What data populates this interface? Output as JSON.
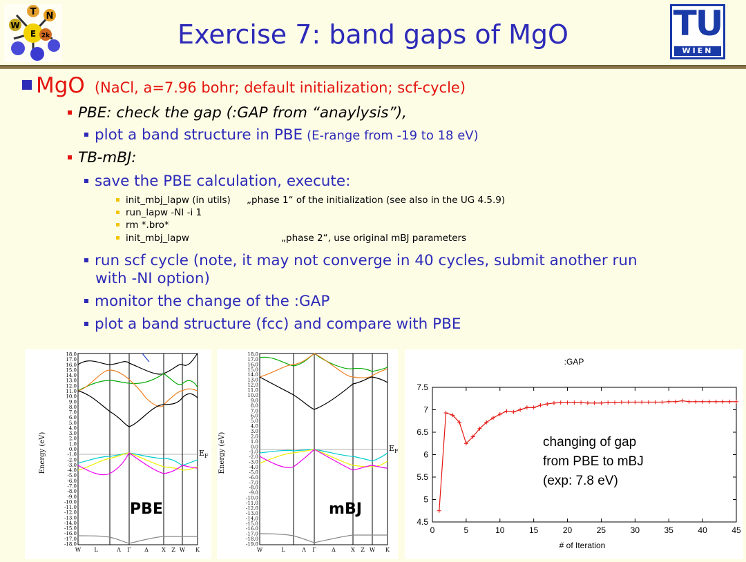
{
  "header": {
    "title": "Exercise 7: band gaps of MgO",
    "left_logo": {
      "letters": [
        "T",
        "E",
        "W",
        "N",
        "2k"
      ]
    },
    "right_logo": {
      "big": "TU",
      "small": "WIEN"
    }
  },
  "bullets": {
    "mgo": {
      "head": "MgO",
      "detail": "(NaCl, a=7.96 bohr; default initialization; scf-cycle)"
    },
    "pbe": {
      "text": "PBE: check the gap  (:GAP from “anaylysis”),"
    },
    "pbe_plot": {
      "text": "plot a band structure in PBE",
      "detail": "(E-range from -19 to 18 eV)"
    },
    "tbmbj": {
      "text": "TB-mBJ:"
    },
    "save": {
      "text": "save the PBE calculation, execute:"
    },
    "commands": [
      {
        "cmd": "init_mbj_lapw (in utils)",
        "note": "„phase 1“ of the initialization (see also in the UG 4.5.9)"
      },
      {
        "cmd": "run_lapw -NI -i 1",
        "note": ""
      },
      {
        "cmd": "rm *.bro*",
        "note": ""
      },
      {
        "cmd": "init_mbj_lapw",
        "note": "„phase 2“, use original mBJ parameters"
      }
    ],
    "scf_line1": "run scf cycle (note, it may not converge in 40 cycles, submit another run",
    "scf_line2": "with -NI option)",
    "monitor": "monitor the change of the :GAP",
    "plot_fcc": "plot a band structure (fcc)  and compare with PBE"
  },
  "band_plots": {
    "ylabel": "Energy (eV)",
    "fermi_label": "E",
    "fermi_sub": "F",
    "kpoints": [
      "W",
      "L",
      "Λ",
      "Γ",
      "Δ",
      "X",
      "Z",
      "W",
      "K"
    ],
    "pbe": {
      "name": "PBE",
      "yticks": [
        "18.0",
        "17.0",
        "16.0",
        "15.0",
        "14.0",
        "13.0",
        "12.0",
        "11.0",
        "10.0",
        "9.0",
        "8.0",
        "7.0",
        "6.0",
        "5.0",
        "4.0",
        "3.0",
        "2.0",
        "1.0",
        "0.0",
        "-1.0",
        "-2.0",
        "-3.0",
        "-4.0",
        "-5.0",
        "-6.0",
        "-7.0",
        "-8.0",
        "-9.0",
        "-10.0",
        "-11.0",
        "-12.0",
        "-13.0",
        "-14.0",
        "-15.0",
        "-16.0",
        "-17.0",
        "-18.0"
      ]
    },
    "mbj": {
      "name": "mBJ",
      "yticks": [
        "18.0",
        "17.0",
        "16.0",
        "15.0",
        "14.0",
        "13.0",
        "12.0",
        "11.0",
        "10.0",
        "9.0",
        "8.0",
        "7.0",
        "6.0",
        "5.0",
        "4.0",
        "3.0",
        "2.0",
        "1.0",
        "0.0",
        "-1.0",
        "-2.0",
        "-3.0",
        "-4.0",
        "-5.0",
        "-6.0",
        "-7.0",
        "-8.0",
        "-9.0",
        "-10.0",
        "-11.0",
        "-12.0",
        "-13.0",
        "-14.0",
        "-15.0",
        "-16.0",
        "-17.0",
        "-18.0",
        "-19.0"
      ]
    }
  },
  "chart_data": {
    "type": "line",
    "title": ":GAP",
    "xlabel": "# of Iteration",
    "ylabel": "",
    "xlim": [
      0,
      45
    ],
    "ylim": [
      4.5,
      7.5
    ],
    "xticks": [
      0,
      5,
      10,
      15,
      20,
      25,
      30,
      35,
      40,
      45
    ],
    "yticks": [
      4.5,
      5,
      5.5,
      6,
      6.5,
      7,
      7.5
    ],
    "series": [
      {
        "x": [
          1,
          2,
          3,
          4,
          5,
          6,
          7,
          8,
          9,
          10,
          11,
          12,
          13,
          14,
          15,
          16,
          17,
          18,
          19,
          20,
          21,
          22,
          23,
          24,
          25,
          26,
          27,
          28,
          29,
          30,
          31,
          32,
          33,
          34,
          35,
          36,
          37,
          38,
          39,
          40,
          41,
          42,
          43,
          44,
          45
        ],
        "values": [
          4.75,
          6.93,
          6.88,
          6.72,
          6.25,
          6.4,
          6.58,
          6.72,
          6.82,
          6.9,
          6.97,
          6.95,
          7.0,
          7.05,
          7.05,
          7.1,
          7.13,
          7.15,
          7.16,
          7.16,
          7.16,
          7.16,
          7.15,
          7.15,
          7.15,
          7.16,
          7.16,
          7.17,
          7.17,
          7.17,
          7.17,
          7.17,
          7.17,
          7.17,
          7.18,
          7.18,
          7.2,
          7.18,
          7.18,
          7.18,
          7.18,
          7.18,
          7.18,
          7.18,
          7.18
        ],
        "color": "#e3140e"
      }
    ],
    "annotation": [
      "changing of gap",
      "from PBE to mBJ",
      "(exp: 7.8 eV)"
    ]
  }
}
